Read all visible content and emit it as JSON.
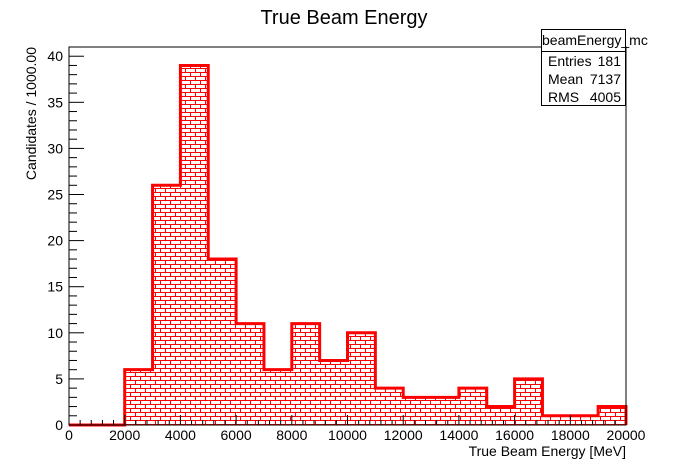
{
  "chart_data": {
    "type": "bar",
    "title": "True Beam Energy",
    "xlabel": "True Beam Energy [MeV]",
    "ylabel": "Candidates / 1000.00",
    "xlim": [
      0,
      20000
    ],
    "ylim": [
      0,
      41
    ],
    "x_ticks": [
      "0",
      "2000",
      "4000",
      "6000",
      "8000",
      "10000",
      "12000",
      "14000",
      "16000",
      "18000",
      "20000"
    ],
    "y_ticks": [
      "0",
      "5",
      "10",
      "15",
      "20",
      "25",
      "30",
      "35",
      "40"
    ],
    "bin_edges": [
      0,
      1000,
      2000,
      3000,
      4000,
      5000,
      6000,
      7000,
      8000,
      9000,
      10000,
      11000,
      12000,
      13000,
      14000,
      15000,
      16000,
      17000,
      18000,
      19000,
      20000
    ],
    "values": [
      0,
      0,
      6,
      26,
      39,
      18,
      11,
      6,
      11,
      7,
      10,
      4,
      3,
      3,
      4,
      2,
      5,
      1,
      1,
      2
    ],
    "line_color": "#ff0000",
    "fill_pattern": "brick",
    "grid": false
  },
  "stats": {
    "title": "beamEnergy_mc",
    "rows": [
      {
        "label": "Entries",
        "value": "181"
      },
      {
        "label": "Mean",
        "value": "7137"
      },
      {
        "label": "RMS",
        "value": "4005"
      }
    ]
  }
}
